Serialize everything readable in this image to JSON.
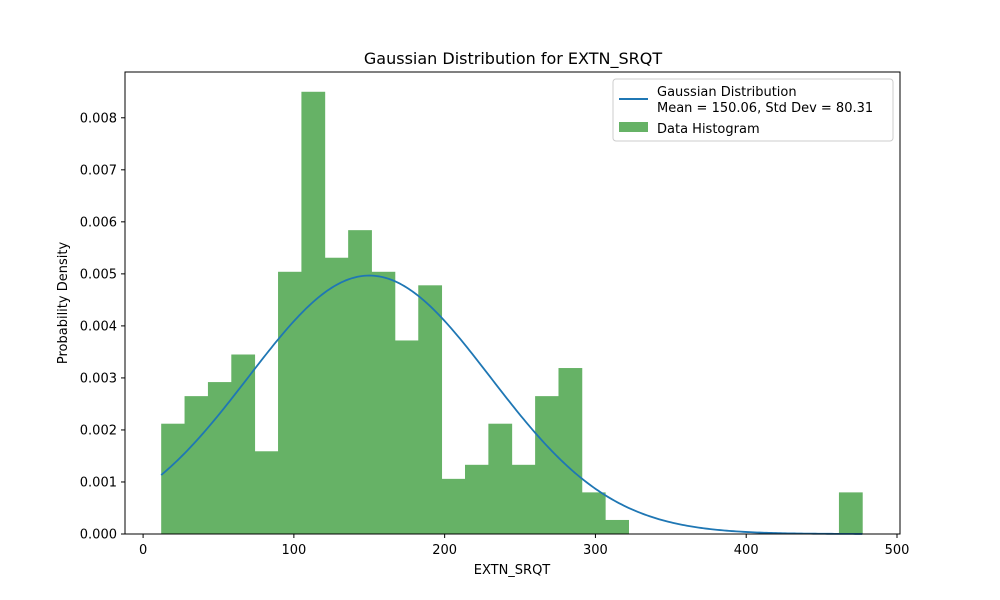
{
  "chart_data": {
    "type": "bar",
    "title": "Gaussian Distribution for EXTN_SRQT",
    "xlabel": "EXTN_SRQT",
    "ylabel": "Probability Density",
    "xlim": [
      -12,
      502
    ],
    "ylim": [
      0,
      0.00888
    ],
    "xticks": [
      0,
      100,
      200,
      300,
      400,
      500
    ],
    "xtick_labels": [
      "0",
      "100",
      "200",
      "300",
      "400",
      "500"
    ],
    "yticks": [
      0,
      0.001,
      0.002,
      0.003,
      0.004,
      0.005,
      0.006,
      0.007,
      0.008
    ],
    "ytick_labels": [
      "0.000",
      "0.001",
      "0.002",
      "0.003",
      "0.004",
      "0.005",
      "0.006",
      "0.007",
      "0.008"
    ],
    "grid": false,
    "legend_position": "top-right",
    "histogram": {
      "name": "Data Histogram",
      "color": "#66b266",
      "bin_start": 12.0,
      "bin_width": 15.5,
      "densities": [
        0.00212,
        0.00265,
        0.00292,
        0.00345,
        0.00159,
        0.00504,
        0.0085,
        0.00531,
        0.00584,
        0.00504,
        0.00372,
        0.00478,
        0.00106,
        0.00133,
        0.00212,
        0.00133,
        0.00265,
        0.00319,
        0.0008,
        0.00027,
        0,
        0,
        0,
        0,
        0,
        0,
        0,
        0,
        0,
        0.0008
      ]
    },
    "gaussian": {
      "name": "Gaussian Distribution",
      "name_line2": "Mean = 150.06, Std Dev = 80.31",
      "mean": 150.06,
      "std": 80.31,
      "x_range": [
        12,
        477
      ],
      "color": "#1f77b4"
    }
  }
}
